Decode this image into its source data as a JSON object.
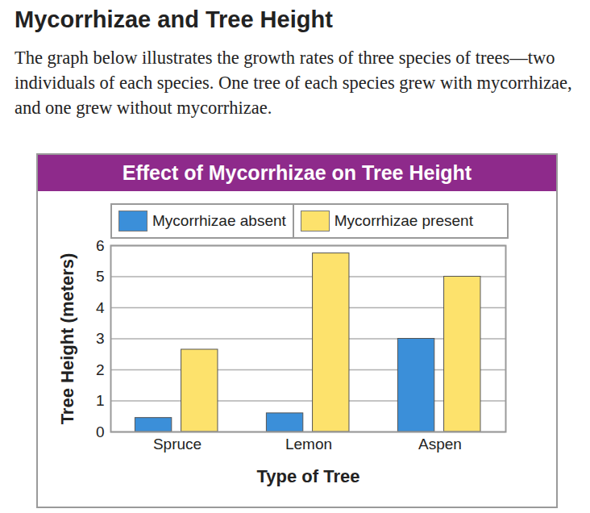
{
  "page": {
    "heading": "Mycorrhizae and Tree Height",
    "text": "The graph below illustrates the growth rates of three species of trees—two individuals of each species. One tree of each species grew with mycorrhizae, and one grew without mycorrhizae."
  },
  "chart_data": {
    "type": "bar",
    "title": "Effect of Mycorrhizae on Tree Height",
    "x_label": "Type of Tree",
    "y_label": "Tree Height (meters)",
    "categories": [
      "Spruce",
      "Lemon",
      "Aspen"
    ],
    "series": [
      {
        "name": "Mycorrhizae absent",
        "color": "#3b8fd9",
        "values": [
          0.45,
          0.6,
          3.0
        ]
      },
      {
        "name": "Mycorrhizae present",
        "color": "#fde26c",
        "values": [
          2.65,
          5.75,
          5.0
        ]
      }
    ],
    "ylim": [
      0,
      6
    ],
    "yticks": [
      0,
      1,
      2,
      3,
      4,
      5,
      6
    ],
    "grid": true,
    "legend": "top"
  }
}
